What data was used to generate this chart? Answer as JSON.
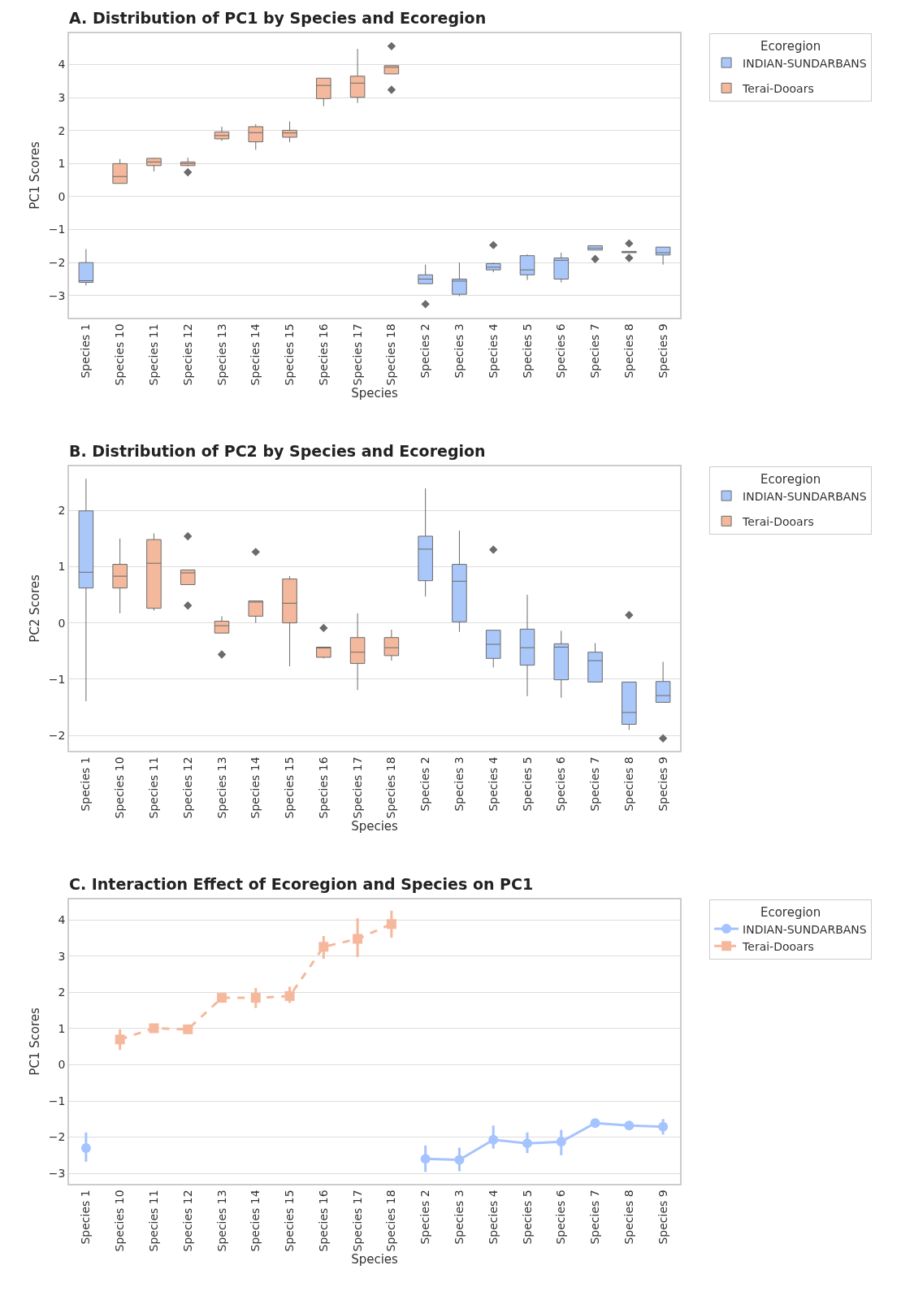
{
  "chart_data": [
    {
      "type": "box",
      "title": "A. Distribution of PC1 by Species and Ecoregion",
      "xlabel": "Species",
      "ylabel": "PC1 Scores",
      "legend_title": "Ecoregion",
      "legend": "top right",
      "grid": "y",
      "categories": [
        "Species 1",
        "Species 10",
        "Species 11",
        "Species 12",
        "Species 13",
        "Species 14",
        "Species 15",
        "Species 16",
        "Species 17",
        "Species 18",
        "Species 2",
        "Species 3",
        "Species 4",
        "Species 5",
        "Species 6",
        "Species 7",
        "Species 8",
        "Species 9"
      ],
      "ylim": [
        -3.67,
        4.95
      ],
      "yticks": [
        -3,
        -2,
        -1,
        0,
        1,
        2,
        3,
        4
      ],
      "series": [
        {
          "name": "INDIAN-SUNDARBANS",
          "color": "#aac7fa",
          "boxes": [
            {
              "low": -2.7,
              "q1": -2.6,
              "median": -2.55,
              "q3": -2.0,
              "high": -1.59
            },
            null,
            null,
            null,
            null,
            null,
            null,
            null,
            null,
            null,
            {
              "low": -2.64,
              "q1": -2.64,
              "median": -2.5,
              "q3": -2.37,
              "high": -2.06,
              "outliers": [
                -3.26
              ]
            },
            {
              "low": -3.02,
              "q1": -2.96,
              "median": -2.56,
              "q3": -2.5,
              "high": -2.0
            },
            {
              "low": -2.29,
              "q1": -2.22,
              "median": -2.14,
              "q3": -2.03,
              "high": -2.0,
              "outliers": [
                -1.47
              ]
            },
            {
              "low": -2.53,
              "q1": -2.37,
              "median": -2.22,
              "q3": -1.79,
              "high": -1.75
            },
            {
              "low": -2.6,
              "q1": -2.5,
              "median": -1.93,
              "q3": -1.86,
              "high": -1.7
            },
            {
              "low": -1.62,
              "q1": -1.62,
              "median": -1.56,
              "q3": -1.49,
              "high": -1.49,
              "outliers": [
                -1.89
              ]
            },
            {
              "low": -1.7,
              "q1": -1.7,
              "median": -1.68,
              "q3": -1.66,
              "high": -1.66,
              "outliers": [
                -1.42,
                -1.86
              ]
            },
            {
              "low": -2.06,
              "q1": -1.77,
              "median": -1.7,
              "q3": -1.53,
              "high": -1.53
            }
          ]
        },
        {
          "name": "Terai-Dooars",
          "color": "#f4b89c",
          "boxes": [
            null,
            {
              "low": 0.4,
              "q1": 0.4,
              "median": 0.61,
              "q3": 1.0,
              "high": 1.14
            },
            {
              "low": 0.76,
              "q1": 0.94,
              "median": 1.05,
              "q3": 1.16,
              "high": 1.18
            },
            {
              "low": 0.92,
              "q1": 0.94,
              "median": 1.0,
              "q3": 1.05,
              "high": 1.18,
              "outliers": [
                0.74
              ]
            },
            {
              "low": 1.69,
              "q1": 1.75,
              "median": 1.85,
              "q3": 1.96,
              "high": 2.12
            },
            {
              "low": 1.42,
              "q1": 1.66,
              "median": 1.94,
              "q3": 2.12,
              "high": 2.2
            },
            {
              "low": 1.65,
              "q1": 1.8,
              "median": 1.93,
              "q3": 2.01,
              "high": 2.28
            },
            {
              "low": 2.74,
              "q1": 2.97,
              "median": 3.37,
              "q3": 3.59,
              "high": 3.59
            },
            {
              "low": 2.84,
              "q1": 3.01,
              "median": 3.44,
              "q3": 3.65,
              "high": 4.48
            },
            {
              "low": 3.72,
              "q1": 3.72,
              "median": 3.92,
              "q3": 3.97,
              "high": 3.97,
              "outliers": [
                4.56,
                3.24
              ]
            },
            null,
            null,
            null,
            null,
            null,
            null,
            null,
            null
          ]
        }
      ]
    },
    {
      "type": "box",
      "title": "B. Distribution of PC2 by Species and Ecoregion",
      "xlabel": "Species",
      "ylabel": "PC2 Scores",
      "legend_title": "Ecoregion",
      "legend": "top right",
      "grid": "y",
      "categories": [
        "Species 1",
        "Species 10",
        "Species 11",
        "Species 12",
        "Species 13",
        "Species 14",
        "Species 15",
        "Species 16",
        "Species 17",
        "Species 18",
        "Species 2",
        "Species 3",
        "Species 4",
        "Species 5",
        "Species 6",
        "Species 7",
        "Species 8",
        "Species 9"
      ],
      "ylim": [
        -2.27,
        2.78
      ],
      "yticks": [
        -2,
        -1,
        0,
        1,
        2
      ],
      "series": [
        {
          "name": "INDIAN-SUNDARBANS",
          "color": "#aac7fa",
          "boxes": [
            {
              "low": -1.39,
              "q1": 0.62,
              "median": 0.9,
              "q3": 1.99,
              "high": 2.56
            },
            null,
            null,
            null,
            null,
            null,
            null,
            null,
            null,
            null,
            {
              "low": 0.47,
              "q1": 0.75,
              "median": 1.31,
              "q3": 1.54,
              "high": 2.39
            },
            {
              "low": -0.16,
              "q1": 0.02,
              "median": 0.74,
              "q3": 1.04,
              "high": 1.64
            },
            {
              "low": -0.79,
              "q1": -0.63,
              "median": -0.38,
              "q3": -0.13,
              "high": -0.13,
              "outliers": [
                1.3
              ]
            },
            {
              "low": -1.3,
              "q1": -0.75,
              "median": -0.44,
              "q3": -0.11,
              "high": 0.5
            },
            {
              "low": -1.33,
              "q1": -1.01,
              "median": -0.43,
              "q3": -0.37,
              "high": -0.14
            },
            {
              "low": -1.05,
              "q1": -1.05,
              "median": -0.67,
              "q3": -0.52,
              "high": -0.36
            },
            {
              "low": -1.9,
              "q1": -1.8,
              "median": -1.59,
              "q3": -1.05,
              "high": -1.05,
              "outliers": [
                0.14
              ]
            },
            {
              "low": -1.41,
              "q1": -1.41,
              "median": -1.29,
              "q3": -1.04,
              "high": -0.69,
              "outliers": [
                -2.05
              ]
            }
          ]
        },
        {
          "name": "Terai-Dooars",
          "color": "#f4b89c",
          "boxes": [
            null,
            {
              "low": 0.17,
              "q1": 0.62,
              "median": 0.83,
              "q3": 1.04,
              "high": 1.5
            },
            {
              "low": 0.22,
              "q1": 0.26,
              "median": 1.06,
              "q3": 1.48,
              "high": 1.59
            },
            {
              "low": 0.68,
              "q1": 0.68,
              "median": 0.89,
              "q3": 0.94,
              "high": 0.94,
              "outliers": [
                1.54,
                0.31
              ]
            },
            {
              "low": -0.18,
              "q1": -0.18,
              "median": -0.05,
              "q3": 0.03,
              "high": 0.12,
              "outliers": [
                -0.56
              ]
            },
            {
              "low": 0.0,
              "q1": 0.12,
              "median": 0.37,
              "q3": 0.39,
              "high": 0.39,
              "outliers": [
                1.26
              ]
            },
            {
              "low": -0.77,
              "q1": 0.0,
              "median": 0.35,
              "q3": 0.78,
              "high": 0.83
            },
            {
              "low": -0.63,
              "q1": -0.61,
              "median": -0.43,
              "q3": -0.43,
              "high": -0.43,
              "outliers": [
                -0.09
              ]
            },
            {
              "low": -1.19,
              "q1": -0.72,
              "median": -0.52,
              "q3": -0.26,
              "high": 0.17
            },
            {
              "low": -0.67,
              "q1": -0.58,
              "median": -0.44,
              "q3": -0.26,
              "high": -0.12
            },
            null,
            null,
            null,
            null,
            null,
            null,
            null,
            null
          ]
        }
      ]
    },
    {
      "type": "line",
      "title": "C. Interaction Effect of Ecoregion and Species on PC1",
      "xlabel": "Species",
      "ylabel": "PC1 Scores",
      "legend_title": "Ecoregion",
      "legend": "top right",
      "grid": "y",
      "categories": [
        "Species 1",
        "Species 10",
        "Species 11",
        "Species 12",
        "Species 13",
        "Species 14",
        "Species 15",
        "Species 16",
        "Species 17",
        "Species 18",
        "Species 2",
        "Species 3",
        "Species 4",
        "Species 5",
        "Species 6",
        "Species 7",
        "Species 8",
        "Species 9"
      ],
      "ylim": [
        -3.29,
        4.57
      ],
      "yticks": [
        -3,
        -2,
        -1,
        0,
        1,
        2,
        3,
        4
      ],
      "series": [
        {
          "name": "INDIAN-SUNDARBANS",
          "color": "#a5c3fe",
          "marker": "circle",
          "line_style": "solid",
          "values": [
            -2.3,
            null,
            null,
            null,
            null,
            null,
            null,
            null,
            null,
            null,
            -2.6,
            -2.63,
            -2.07,
            -2.17,
            -2.13,
            -1.61,
            -1.68,
            -1.71
          ],
          "errors": [
            [
              -2.68,
              -1.87
            ],
            null,
            null,
            null,
            null,
            null,
            null,
            null,
            null,
            null,
            [
              -2.96,
              -2.23
            ],
            [
              -2.94,
              -2.29
            ],
            [
              -2.32,
              -1.68
            ],
            [
              -2.44,
              -1.87
            ],
            [
              -2.5,
              -1.8
            ],
            null,
            null,
            [
              -1.93,
              -1.5
            ]
          ]
        },
        {
          "name": "Terai-Dooars",
          "color": "#f5b89d",
          "marker": "square",
          "line_style": "dashed",
          "values": [
            null,
            0.7,
            1.01,
            0.98,
            1.85,
            1.85,
            1.9,
            3.26,
            3.48,
            3.89,
            null,
            null,
            null,
            null,
            null,
            null,
            null,
            null
          ],
          "errors": [
            null,
            [
              0.41,
              0.98
            ],
            null,
            null,
            null,
            [
              1.57,
              2.12
            ],
            [
              1.71,
              2.16
            ],
            [
              2.93,
              3.56
            ],
            [
              2.98,
              4.05
            ],
            [
              3.51,
              4.26
            ],
            null,
            null,
            null,
            null,
            null,
            null,
            null,
            null
          ]
        }
      ]
    }
  ]
}
